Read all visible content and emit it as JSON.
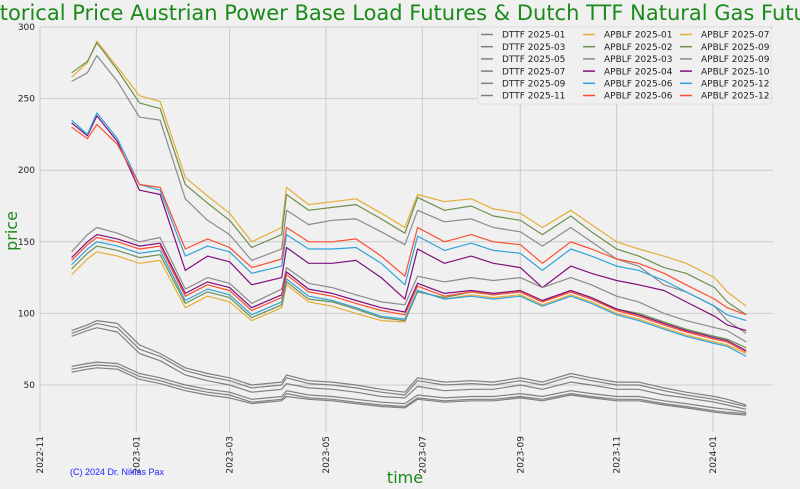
{
  "chart_data": {
    "type": "line",
    "title": "Historical Price Austrian Power Base Load Futures & Dutch TTF Natural Gas Futures",
    "xlabel": "time",
    "ylabel": "price",
    "ylim": [
      20,
      300
    ],
    "xlim": [
      "2022-11-01",
      "2024-02-08"
    ],
    "grid": true,
    "legend_position": "top-right",
    "y_ticks": [
      50,
      100,
      150,
      200,
      250,
      300
    ],
    "x_ticks": [
      "2022-11",
      "2023-01",
      "2023-03",
      "2023-05",
      "2023-07",
      "2023-09",
      "2023-11",
      "2024-01"
    ],
    "x": [
      "2022-11-21",
      "2022-12-01",
      "2022-12-07",
      "2022-12-20",
      "2023-01-03",
      "2023-01-16",
      "2023-02-01",
      "2023-02-15",
      "2023-03-01",
      "2023-03-15",
      "2023-04-03",
      "2023-04-06",
      "2023-04-20",
      "2023-05-05",
      "2023-05-20",
      "2023-06-05",
      "2023-06-20",
      "2023-06-28",
      "2023-07-15",
      "2023-08-01",
      "2023-08-15",
      "2023-09-01",
      "2023-09-15",
      "2023-10-03",
      "2023-10-16",
      "2023-11-01",
      "2023-11-15",
      "2023-12-01",
      "2023-12-15",
      "2024-01-02",
      "2024-01-10",
      "2024-01-22"
    ],
    "series": [
      {
        "name": "DTTF 2025-01",
        "color": "#808080",
        "values": [
          88,
          92,
          95,
          93,
          78,
          72,
          62,
          58,
          55,
          50,
          52,
          57,
          53,
          52,
          50,
          47,
          45,
          55,
          52,
          53,
          52,
          55,
          52,
          58,
          55,
          52,
          52,
          48,
          45,
          42,
          40,
          36
        ]
      },
      {
        "name": "DTTF 2025-03",
        "color": "#808080",
        "values": [
          63,
          65,
          66,
          65,
          58,
          55,
          50,
          47,
          45,
          40,
          42,
          46,
          43,
          42,
          40,
          38,
          37,
          43,
          41,
          42,
          42,
          44,
          42,
          46,
          44,
          42,
          42,
          39,
          37,
          34,
          33,
          31
        ]
      },
      {
        "name": "DTTF 2025-05",
        "color": "#808080",
        "values": [
          61,
          63,
          64,
          63,
          56,
          53,
          48,
          45,
          43,
          38,
          40,
          44,
          41,
          40,
          38,
          36,
          35,
          41,
          39,
          40,
          40,
          42,
          40,
          44,
          42,
          40,
          40,
          37,
          35,
          32,
          31,
          30
        ]
      },
      {
        "name": "DTTF 2025-07",
        "color": "#808080",
        "values": [
          59,
          61,
          62,
          61,
          54,
          51,
          46,
          43,
          41,
          37,
          39,
          42,
          40,
          39,
          37,
          35,
          34,
          40,
          38,
          39,
          39,
          41,
          39,
          43,
          41,
          39,
          39,
          36,
          34,
          31,
          30,
          29
        ]
      },
      {
        "name": "DTTF 2025-09",
        "color": "#808080",
        "values": [
          84,
          88,
          90,
          87,
          72,
          67,
          57,
          53,
          50,
          45,
          47,
          51,
          48,
          47,
          45,
          42,
          41,
          49,
          46,
          47,
          47,
          50,
          47,
          52,
          50,
          47,
          47,
          43,
          41,
          38,
          36,
          33
        ]
      },
      {
        "name": "DTTF 2025-11",
        "color": "#808080",
        "values": [
          86,
          90,
          93,
          90,
          75,
          70,
          60,
          56,
          53,
          48,
          50,
          55,
          51,
          50,
          48,
          45,
          43,
          53,
          50,
          51,
          50,
          53,
          50,
          56,
          53,
          50,
          50,
          46,
          43,
          40,
          38,
          35
        ]
      },
      {
        "name": "APBLF 2025-01",
        "color": "#e5ae38",
        "values": [
          265,
          275,
          290,
          272,
          252,
          248,
          195,
          182,
          170,
          150,
          160,
          188,
          176,
          178,
          180,
          170,
          160,
          183,
          178,
          180,
          173,
          170,
          160,
          172,
          162,
          150,
          145,
          140,
          135,
          125,
          115,
          105
        ]
      },
      {
        "name": "APBLF 2025-02",
        "color": "#6d904f",
        "values": [
          268,
          276,
          289,
          270,
          247,
          243,
          190,
          177,
          165,
          146,
          155,
          183,
          172,
          174,
          176,
          166,
          156,
          181,
          172,
          175,
          168,
          165,
          155,
          168,
          157,
          145,
          140,
          132,
          128,
          118,
          108,
          99
        ]
      },
      {
        "name": "APBLF 2025-03",
        "color": "#8b8b8b",
        "values": [
          262,
          268,
          280,
          262,
          237,
          235,
          180,
          165,
          155,
          137,
          145,
          172,
          162,
          165,
          166,
          157,
          148,
          172,
          164,
          166,
          160,
          157,
          147,
          160,
          150,
          138,
          133,
          120,
          115,
          105,
          95,
          86
        ]
      },
      {
        "name": "APBLF 2025-04",
        "color": "#810f7c",
        "values": [
          233,
          224,
          238,
          220,
          186,
          183,
          130,
          140,
          136,
          120,
          125,
          146,
          135,
          135,
          137,
          125,
          110,
          145,
          135,
          140,
          135,
          132,
          118,
          133,
          128,
          123,
          120,
          116,
          108,
          98,
          92,
          88
        ]
      },
      {
        "name": "APBLF 2025-06",
        "color": "#30a2da",
        "values": [
          235,
          225,
          240,
          222,
          190,
          186,
          140,
          147,
          143,
          128,
          133,
          155,
          145,
          145,
          146,
          135,
          120,
          154,
          144,
          149,
          144,
          142,
          130,
          145,
          140,
          133,
          130,
          123,
          115,
          105,
          99,
          95
        ]
      },
      {
        "name": "APBLF 2025-06",
        "color": "#fc4f30",
        "values": [
          230,
          222,
          232,
          218,
          190,
          188,
          145,
          152,
          146,
          132,
          138,
          160,
          150,
          150,
          152,
          140,
          126,
          160,
          150,
          155,
          150,
          148,
          135,
          150,
          145,
          138,
          135,
          128,
          120,
          110,
          104,
          99
        ]
      },
      {
        "name": "APBLF 2025-07",
        "color": "#e5ae38",
        "values": [
          127,
          138,
          143,
          140,
          135,
          137,
          104,
          112,
          108,
          95,
          104,
          120,
          108,
          105,
          100,
          95,
          94,
          116,
          110,
          113,
          111,
          113,
          106,
          113,
          108,
          100,
          96,
          90,
          85,
          80,
          78,
          72
        ]
      },
      {
        "name": "APBLF 2025-09",
        "color": "#6d904f",
        "values": [
          131,
          142,
          147,
          144,
          139,
          141,
          107,
          115,
          111,
          97,
          106,
          122,
          110,
          108,
          103,
          97,
          95,
          115,
          111,
          115,
          113,
          115,
          108,
          115,
          110,
          103,
          100,
          94,
          89,
          84,
          82,
          76
        ]
      },
      {
        "name": "APBLF 2025-09",
        "color": "#8b8b8b",
        "values": [
          143,
          155,
          160,
          156,
          150,
          153,
          117,
          125,
          121,
          107,
          117,
          132,
          121,
          118,
          113,
          108,
          106,
          126,
          122,
          125,
          123,
          125,
          118,
          125,
          120,
          112,
          108,
          100,
          95,
          90,
          88,
          80
        ]
      },
      {
        "name": "APBLF 2025-10",
        "color": "#810f7c",
        "values": [
          139,
          150,
          155,
          152,
          147,
          149,
          114,
          122,
          118,
          104,
          113,
          129,
          117,
          114,
          109,
          104,
          101,
          121,
          114,
          116,
          114,
          116,
          109,
          116,
          111,
          103,
          99,
          93,
          88,
          83,
          81,
          74
        ]
      },
      {
        "name": "APBLF 2025-12",
        "color": "#30a2da",
        "values": [
          134,
          145,
          150,
          147,
          142,
          144,
          109,
          117,
          113,
          99,
          108,
          124,
          112,
          109,
          104,
          98,
          96,
          116,
          110,
          112,
          110,
          112,
          105,
          112,
          107,
          99,
          95,
          89,
          84,
          79,
          77,
          70
        ]
      },
      {
        "name": "APBLF 2025-12",
        "color": "#fc4f30",
        "values": [
          137,
          148,
          153,
          150,
          145,
          147,
          112,
          120,
          116,
          102,
          111,
          127,
          115,
          112,
          107,
          102,
          99,
          119,
          112,
          115,
          113,
          115,
          108,
          115,
          110,
          102,
          98,
          92,
          87,
          82,
          80,
          73
        ]
      }
    ]
  },
  "copyright": "(C) 2024 Dr. Niklas Pax"
}
